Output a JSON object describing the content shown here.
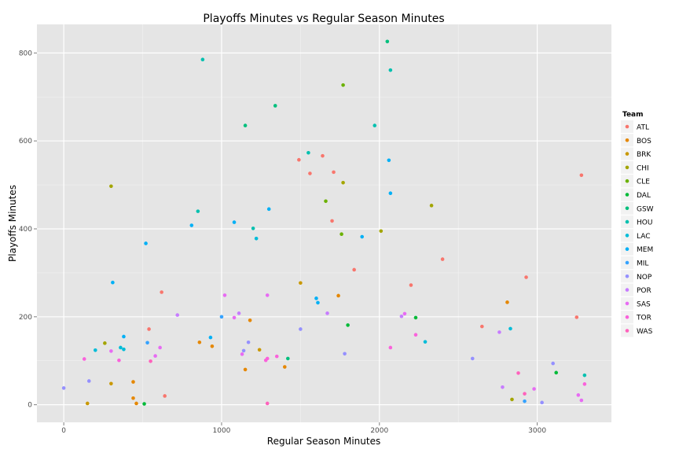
{
  "chart_data": {
    "type": "scatter",
    "title": "Playoffs Minutes vs Regular Season Minutes",
    "xlabel": "Regular Season Minutes",
    "ylabel": "Playoffs Minutes",
    "xlim": [
      -170,
      3470
    ],
    "ylim": [
      -40,
      865
    ],
    "x_ticks": [
      0,
      1000,
      2000,
      3000
    ],
    "y_ticks": [
      0,
      200,
      400,
      600,
      800
    ],
    "grid": true,
    "legend": {
      "title": "Team",
      "placement": "right"
    },
    "series": [
      {
        "name": "ATL",
        "color": "#F8766D",
        "points": [
          [
            1490,
            557
          ],
          [
            1640,
            566
          ],
          [
            1560,
            526
          ],
          [
            1710,
            529
          ],
          [
            1700,
            418
          ],
          [
            1840,
            307
          ],
          [
            2200,
            272
          ],
          [
            2400,
            331
          ],
          [
            2930,
            290
          ],
          [
            3250,
            199
          ],
          [
            3280,
            522
          ],
          [
            620,
            256
          ],
          [
            540,
            172
          ],
          [
            640,
            20
          ],
          [
            2650,
            178
          ]
        ]
      },
      {
        "name": "BOS",
        "color": "#E58700",
        "points": [
          [
            440,
            52
          ],
          [
            440,
            15
          ],
          [
            460,
            3
          ],
          [
            860,
            142
          ],
          [
            940,
            133
          ],
          [
            1180,
            192
          ],
          [
            1150,
            80
          ],
          [
            1400,
            86
          ],
          [
            1740,
            248
          ],
          [
            2810,
            233
          ]
        ]
      },
      {
        "name": "BRK",
        "color": "#C99800",
        "points": [
          [
            150,
            3
          ],
          [
            300,
            48
          ],
          [
            1240,
            125
          ],
          [
            1500,
            277
          ]
        ]
      },
      {
        "name": "CHI",
        "color": "#A3A500",
        "points": [
          [
            260,
            140
          ],
          [
            300,
            497
          ],
          [
            1770,
            505
          ],
          [
            2330,
            453
          ],
          [
            2010,
            395
          ],
          [
            2840,
            12
          ]
        ]
      },
      {
        "name": "CLE",
        "color": "#6BB100",
        "points": [
          [
            1760,
            388
          ],
          [
            1660,
            463
          ],
          [
            1770,
            727
          ]
        ]
      },
      {
        "name": "DAL",
        "color": "#00BA38",
        "points": [
          [
            510,
            2
          ],
          [
            1800,
            181
          ],
          [
            2230,
            198
          ],
          [
            3120,
            73
          ]
        ]
      },
      {
        "name": "GSW",
        "color": "#00BF7D",
        "points": [
          [
            1420,
            105
          ],
          [
            1150,
            635
          ],
          [
            1340,
            680
          ],
          [
            2050,
            826
          ]
        ]
      },
      {
        "name": "HOU",
        "color": "#00C0AF",
        "points": [
          [
            880,
            785
          ],
          [
            850,
            440
          ],
          [
            1200,
            401
          ],
          [
            2070,
            761
          ],
          [
            1550,
            573
          ],
          [
            1970,
            635
          ],
          [
            3300,
            67
          ]
        ]
      },
      {
        "name": "LAC",
        "color": "#00BCD8",
        "points": [
          [
            200,
            124
          ],
          [
            380,
            126
          ],
          [
            360,
            130
          ],
          [
            1220,
            378
          ],
          [
            2830,
            173
          ],
          [
            2290,
            143
          ]
        ]
      },
      {
        "name": "MEM",
        "color": "#00B0F6",
        "points": [
          [
            310,
            278
          ],
          [
            520,
            367
          ],
          [
            380,
            155
          ],
          [
            1300,
            445
          ],
          [
            810,
            408
          ],
          [
            1080,
            415
          ],
          [
            2060,
            556
          ],
          [
            2070,
            481
          ],
          [
            1600,
            242
          ],
          [
            1610,
            232
          ],
          [
            1890,
            382
          ],
          [
            930,
            153
          ]
        ]
      },
      {
        "name": "MIL",
        "color": "#35A2FF",
        "points": [
          [
            530,
            141
          ],
          [
            1000,
            200
          ],
          [
            2920,
            8
          ]
        ]
      },
      {
        "name": "NOP",
        "color": "#9590FF",
        "points": [
          [
            0,
            38
          ],
          [
            160,
            54
          ],
          [
            1170,
            142
          ],
          [
            1140,
            123
          ],
          [
            1500,
            172
          ],
          [
            1780,
            116
          ],
          [
            2590,
            105
          ],
          [
            3100,
            94
          ],
          [
            3030,
            5
          ]
        ]
      },
      {
        "name": "POR",
        "color": "#C77CFF",
        "points": [
          [
            720,
            204
          ],
          [
            1110,
            208
          ],
          [
            1670,
            208
          ],
          [
            2140,
            201
          ],
          [
            2760,
            165
          ],
          [
            2780,
            40
          ]
        ]
      },
      {
        "name": "SAS",
        "color": "#E76BF3",
        "points": [
          [
            300,
            122
          ],
          [
            580,
            111
          ],
          [
            610,
            130
          ],
          [
            1020,
            249
          ],
          [
            1080,
            198
          ],
          [
            1130,
            115
          ],
          [
            1290,
            249
          ],
          [
            2160,
            207
          ],
          [
            2980,
            36
          ],
          [
            3280,
            10
          ],
          [
            3260,
            22
          ]
        ]
      },
      {
        "name": "TOR",
        "color": "#FA62DB",
        "points": [
          [
            130,
            104
          ],
          [
            350,
            101
          ],
          [
            1280,
            101
          ],
          [
            1290,
            105
          ],
          [
            1350,
            110
          ],
          [
            2070,
            130
          ],
          [
            2230,
            159
          ],
          [
            3300,
            47
          ]
        ]
      },
      {
        "name": "WAS",
        "color": "#FF62BC",
        "points": [
          [
            550,
            99
          ],
          [
            2880,
            72
          ],
          [
            2920,
            25
          ],
          [
            1290,
            3
          ]
        ]
      }
    ]
  }
}
